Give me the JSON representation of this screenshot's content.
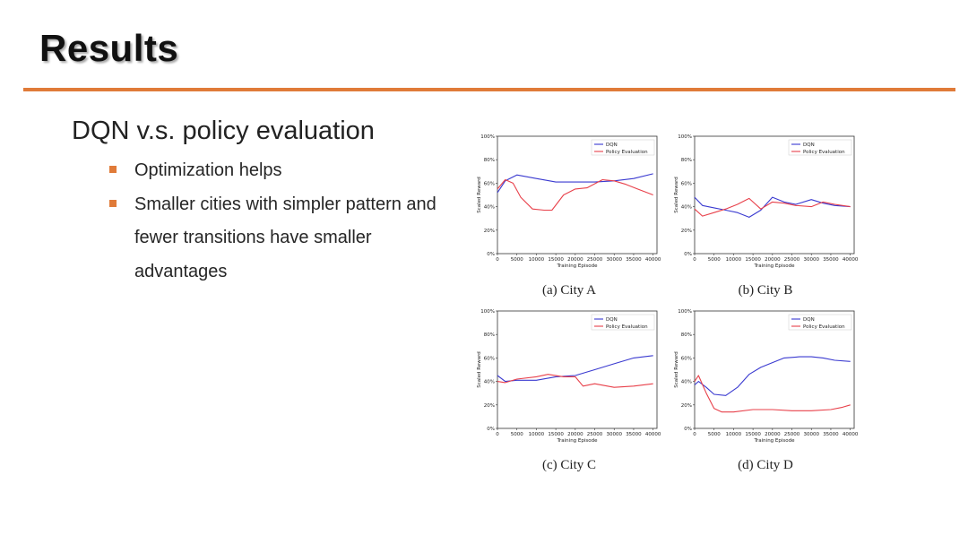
{
  "slide": {
    "title": "Results",
    "subtitle": "DQN v.s. policy evaluation",
    "bullets": [
      "Optimization helps",
      "Smaller cities with simpler pattern and fewer transitions have smaller advantages"
    ]
  },
  "colors": {
    "accent": "#e07b39",
    "dqn": "#3a3ad0",
    "policy": "#e8404a"
  },
  "chart_data": [
    {
      "type": "line",
      "caption": "(a) City A",
      "xlabel": "Training Episode",
      "ylabel": "Scaled Reward",
      "xlim": [
        0,
        41000
      ],
      "ylim": [
        0,
        100
      ],
      "xticks": [
        0,
        5000,
        10000,
        15000,
        20000,
        25000,
        30000,
        35000,
        40000
      ],
      "yticks": [
        "0%",
        "20%",
        "40%",
        "60%",
        "80%",
        "100%"
      ],
      "legend": [
        "DQN",
        "Policy Evaluation"
      ],
      "series": [
        {
          "name": "DQN",
          "x": [
            0,
            2000,
            5000,
            10000,
            15000,
            20000,
            25000,
            30000,
            35000,
            40000
          ],
          "values": [
            52,
            62,
            67,
            64,
            61,
            61,
            61,
            62,
            64,
            68
          ]
        },
        {
          "name": "Policy Evaluation",
          "x": [
            0,
            2000,
            4000,
            6000,
            9000,
            12000,
            14000,
            17000,
            20000,
            23000,
            27000,
            30000,
            33000,
            36000,
            40000
          ],
          "values": [
            55,
            63,
            60,
            48,
            38,
            37,
            37,
            50,
            55,
            56,
            63,
            62,
            59,
            55,
            50
          ]
        }
      ]
    },
    {
      "type": "line",
      "caption": "(b) City B",
      "xlabel": "Training Episode",
      "ylabel": "Scaled Reward",
      "xlim": [
        0,
        41000
      ],
      "ylim": [
        0,
        100
      ],
      "xticks": [
        0,
        5000,
        10000,
        15000,
        20000,
        25000,
        30000,
        35000,
        40000
      ],
      "yticks": [
        "0%",
        "20%",
        "40%",
        "60%",
        "80%",
        "100%"
      ],
      "legend": [
        "DQN",
        "Policy Evaluation"
      ],
      "series": [
        {
          "name": "DQN",
          "x": [
            0,
            2000,
            5000,
            8000,
            11000,
            14000,
            17000,
            20000,
            23000,
            26000,
            30000,
            33000,
            36000,
            40000
          ],
          "values": [
            48,
            41,
            39,
            37,
            35,
            31,
            37,
            48,
            44,
            42,
            46,
            43,
            41,
            40
          ]
        },
        {
          "name": "Policy Evaluation",
          "x": [
            0,
            2000,
            5000,
            8000,
            11000,
            14000,
            17000,
            20000,
            23000,
            26000,
            30000,
            33000,
            36000,
            40000
          ],
          "values": [
            38,
            32,
            35,
            38,
            42,
            47,
            38,
            44,
            43,
            41,
            40,
            44,
            42,
            40
          ]
        }
      ]
    },
    {
      "type": "line",
      "caption": "(c) City C",
      "xlabel": "Training Episode",
      "ylabel": "Scaled Reward",
      "xlim": [
        0,
        41000
      ],
      "ylim": [
        0,
        100
      ],
      "xticks": [
        0,
        5000,
        10000,
        15000,
        20000,
        25000,
        30000,
        35000,
        40000
      ],
      "yticks": [
        "0%",
        "20%",
        "40%",
        "60%",
        "80%",
        "100%"
      ],
      "legend": [
        "DQN",
        "Policy Evaluation"
      ],
      "series": [
        {
          "name": "DQN",
          "x": [
            0,
            2000,
            5000,
            10000,
            15000,
            20000,
            25000,
            30000,
            35000,
            40000
          ],
          "values": [
            45,
            40,
            41,
            41,
            44,
            45,
            50,
            55,
            60,
            62
          ]
        },
        {
          "name": "Policy Evaluation",
          "x": [
            0,
            2000,
            5000,
            10000,
            13000,
            17000,
            20000,
            22000,
            25000,
            30000,
            35000,
            40000
          ],
          "values": [
            40,
            39,
            42,
            44,
            46,
            44,
            44,
            36,
            38,
            35,
            36,
            38
          ]
        }
      ]
    },
    {
      "type": "line",
      "caption": "(d) City D",
      "xlabel": "Training Episode",
      "ylabel": "Scaled Reward",
      "xlim": [
        0,
        41000
      ],
      "ylim": [
        0,
        100
      ],
      "xticks": [
        0,
        5000,
        10000,
        15000,
        20000,
        25000,
        30000,
        35000,
        40000
      ],
      "yticks": [
        "0%",
        "20%",
        "40%",
        "60%",
        "80%",
        "100%"
      ],
      "legend": [
        "DQN",
        "Policy Evaluation"
      ],
      "series": [
        {
          "name": "DQN",
          "x": [
            0,
            1000,
            3000,
            5000,
            8000,
            11000,
            14000,
            17000,
            20000,
            23000,
            27000,
            30000,
            33000,
            36000,
            40000
          ],
          "values": [
            37,
            40,
            35,
            29,
            28,
            35,
            46,
            52,
            56,
            60,
            61,
            61,
            60,
            58,
            57
          ]
        },
        {
          "name": "Policy Evaluation",
          "x": [
            0,
            1000,
            3000,
            5000,
            7000,
            10000,
            15000,
            20000,
            25000,
            30000,
            35000,
            38000,
            40000
          ],
          "values": [
            40,
            45,
            30,
            17,
            14,
            14,
            16,
            16,
            15,
            15,
            16,
            18,
            20
          ]
        }
      ]
    }
  ]
}
